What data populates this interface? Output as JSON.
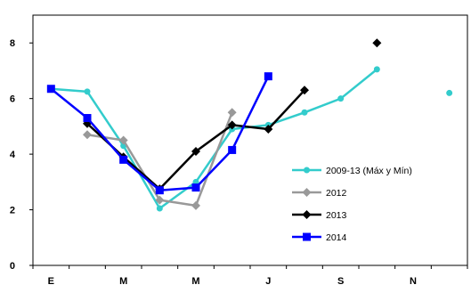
{
  "chart_data": {
    "type": "line",
    "title": "",
    "xlabel": "",
    "ylabel": "",
    "x_tick_labels": [
      {
        "label": "E",
        "x": 1
      },
      {
        "label": "M",
        "x": 3
      },
      {
        "label": "M",
        "x": 5
      },
      {
        "label": "J",
        "x": 7
      },
      {
        "label": "S",
        "x": 9
      },
      {
        "label": "N",
        "x": 11
      }
    ],
    "xlim": [
      0.5,
      12.5
    ],
    "ylim": [
      0,
      9
    ],
    "y_ticks": [
      0,
      2,
      4,
      6,
      8
    ],
    "grid": false,
    "legend_position": "right",
    "series": [
      {
        "name": "2009-13 (Máx y Mín)",
        "color": "#33cccc",
        "marker": "circle",
        "points": [
          [
            1,
            6.35
          ],
          [
            2,
            6.25
          ],
          [
            3,
            4.3
          ],
          [
            4,
            2.05
          ],
          [
            5,
            3.0
          ],
          [
            6,
            4.9
          ],
          [
            7,
            5.05
          ],
          [
            8,
            5.5
          ],
          [
            9,
            6.0
          ],
          [
            10,
            7.05
          ]
        ]
      },
      {
        "name": "",
        "color": "#33cccc",
        "marker": "circle",
        "points": [
          [
            12,
            6.2
          ]
        ]
      },
      {
        "name": "2012",
        "color": "#999999",
        "marker": "diamond",
        "points": [
          [
            2,
            4.7
          ],
          [
            3,
            4.5
          ],
          [
            4,
            2.35
          ],
          [
            5,
            2.15
          ],
          [
            6,
            5.5
          ]
        ]
      },
      {
        "name": "2013",
        "color": "#000000",
        "marker": "diamond",
        "points": [
          [
            2,
            5.1
          ],
          [
            3,
            3.9
          ],
          [
            4,
            2.75
          ],
          [
            5,
            4.1
          ],
          [
            6,
            5.05
          ],
          [
            7,
            4.9
          ],
          [
            8,
            6.3
          ]
        ]
      },
      {
        "name": "",
        "color": "#000000",
        "marker": "diamond",
        "points": [
          [
            10,
            8.0
          ]
        ]
      },
      {
        "name": "2014",
        "color": "#0000ff",
        "marker": "square",
        "points": [
          [
            1,
            6.35
          ],
          [
            2,
            5.3
          ],
          [
            3,
            3.8
          ],
          [
            4,
            2.7
          ],
          [
            5,
            2.8
          ],
          [
            6,
            4.15
          ],
          [
            7,
            6.8
          ]
        ]
      }
    ]
  }
}
